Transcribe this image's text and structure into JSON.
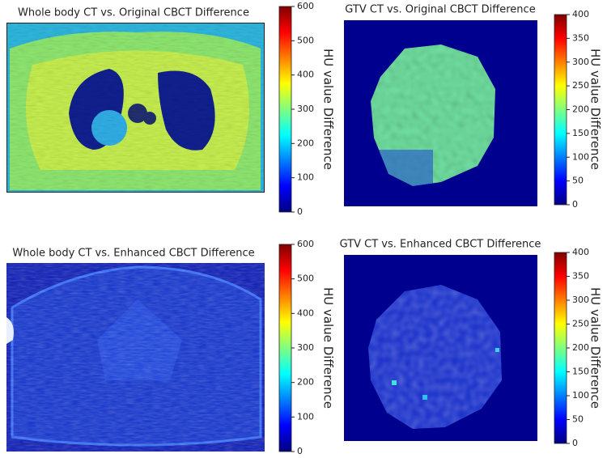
{
  "chart_data": [
    {
      "type": "image",
      "title": "Whole body CT vs. Original CBCT Difference",
      "colorbar_label": "HU value Difference",
      "colormap": "jet",
      "clim": [
        0,
        600
      ],
      "cticks": [
        0,
        100,
        200,
        300,
        400,
        500,
        600
      ]
    },
    {
      "type": "image",
      "title": "GTV CT vs. Original CBCT Difference",
      "colorbar_label": "HU value Difference",
      "colormap": "jet",
      "clim": [
        0,
        400
      ],
      "cticks": [
        0,
        50,
        100,
        150,
        200,
        250,
        300,
        350,
        400
      ]
    },
    {
      "type": "image",
      "title": "Whole body CT vs. Enhanced CBCT Difference",
      "colorbar_label": "HU value Difference",
      "colormap": "jet",
      "clim": [
        0,
        600
      ],
      "cticks": [
        0,
        100,
        200,
        300,
        400,
        500,
        600
      ]
    },
    {
      "type": "image",
      "title": "GTV CT vs. Enhanced CBCT Difference",
      "colorbar_label": "HU value Difference",
      "colormap": "jet",
      "clim": [
        0,
        400
      ],
      "cticks": [
        0,
        50,
        100,
        150,
        200,
        250,
        300,
        350,
        400
      ]
    }
  ]
}
